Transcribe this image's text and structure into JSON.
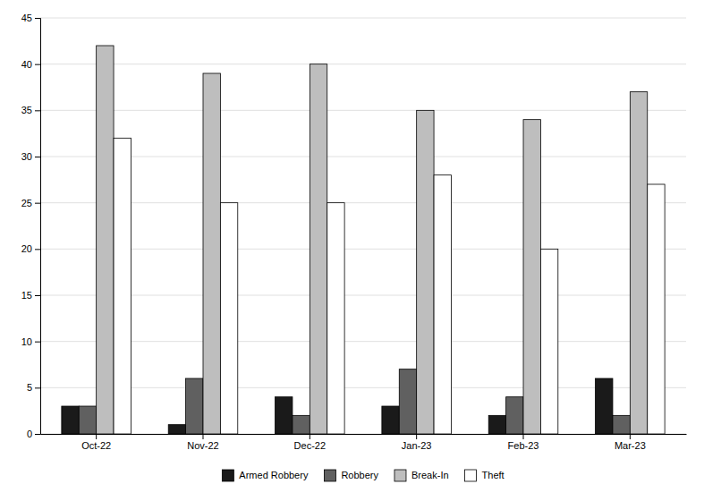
{
  "chart_data": {
    "type": "bar",
    "categories": [
      "Oct-22",
      "Nov-22",
      "Dec-22",
      "Jan-23",
      "Feb-23",
      "Mar-23"
    ],
    "series": [
      {
        "name": "Armed Robbery",
        "color": "#1a1a1a",
        "values": [
          3,
          1,
          4,
          3,
          2,
          6
        ]
      },
      {
        "name": "Robbery",
        "color": "#606060",
        "values": [
          3,
          6,
          2,
          7,
          4,
          2
        ]
      },
      {
        "name": "Break-In",
        "color": "#bebebe",
        "values": [
          42,
          39,
          40,
          35,
          34,
          37
        ]
      },
      {
        "name": "Theft",
        "color": "#ffffff",
        "values": [
          32,
          25,
          25,
          28,
          20,
          27
        ]
      }
    ],
    "ylim": [
      0,
      45
    ],
    "yticks": [
      0,
      5,
      10,
      15,
      20,
      25,
      30,
      35,
      40,
      45
    ],
    "grid": true,
    "legend": "bottom"
  }
}
